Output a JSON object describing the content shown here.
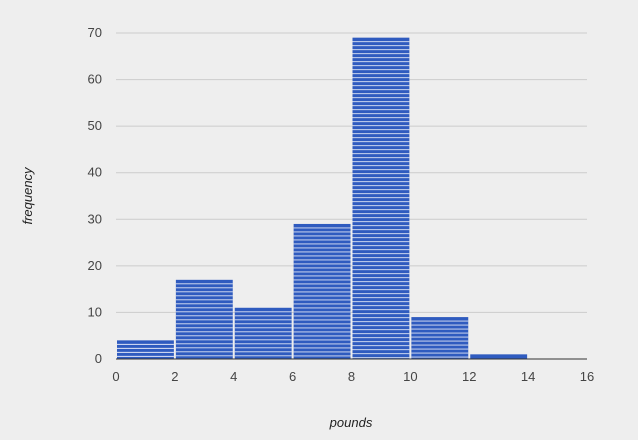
{
  "chart_data": {
    "type": "bar",
    "subtype": "histogram",
    "title": "",
    "xlabel": "pounds",
    "ylabel": "frequency",
    "bins": [
      {
        "from": 0,
        "to": 2,
        "count": 4
      },
      {
        "from": 2,
        "to": 4,
        "count": 17
      },
      {
        "from": 4,
        "to": 6,
        "count": 11
      },
      {
        "from": 6,
        "to": 8,
        "count": 29
      },
      {
        "from": 8,
        "to": 10,
        "count": 69
      },
      {
        "from": 10,
        "to": 12,
        "count": 9
      },
      {
        "from": 12,
        "to": 14,
        "count": 1
      },
      {
        "from": 14,
        "to": 16,
        "count": 0
      }
    ],
    "xlim": [
      0,
      16
    ],
    "ylim": [
      0,
      70
    ],
    "xticks": [
      "0",
      "2",
      "4",
      "6",
      "8",
      "10",
      "12",
      "14",
      "16"
    ],
    "yticks": [
      "0",
      "10",
      "20",
      "30",
      "40",
      "50",
      "60",
      "70"
    ],
    "grid": true,
    "legend": "none",
    "bar_color": "#2f5bbf",
    "bar_stripe_color": "#ffffff",
    "grid_color": "#cccccc",
    "background": "#eeeeee"
  }
}
